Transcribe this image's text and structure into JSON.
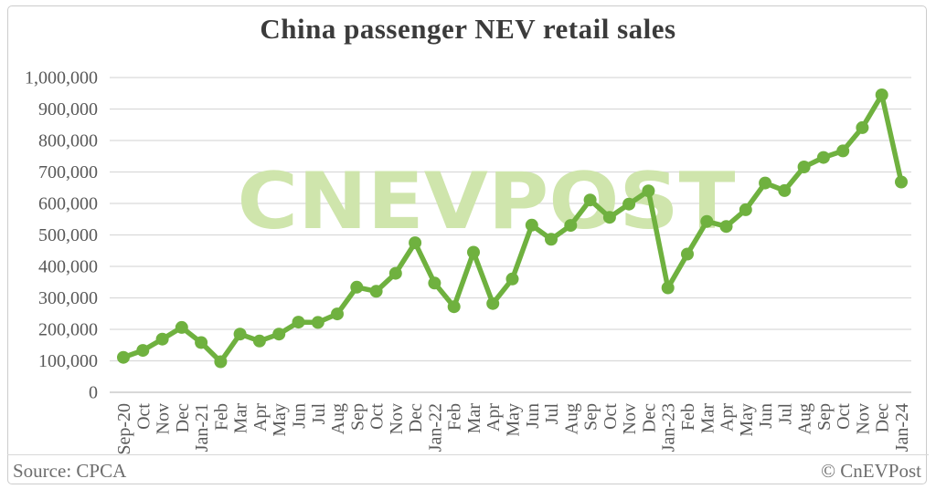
{
  "title": "China passenger NEV retail sales",
  "watermark": "CNEVPOST",
  "footer": {
    "source": "Source: CPCA",
    "credit": "© CnEVPost"
  },
  "colors": {
    "line": "#6fb13f",
    "marker": "#6fb13f",
    "watermark": "#cfe5ac",
    "grid": "#d9d9d9",
    "axis_line": "#c0c0c0",
    "axis_text": "#595959",
    "title_text": "#3b3b3b",
    "footer_text": "#6e6e6e",
    "card_border": "#cccccc"
  },
  "chart_data": {
    "type": "line",
    "title": "China passenger NEV retail sales",
    "xlabel": "",
    "ylabel": "",
    "ylim": [
      0,
      1000000
    ],
    "ytick_interval": 100000,
    "ytick_labels": [
      "0",
      "100,000",
      "200,000",
      "300,000",
      "400,000",
      "500,000",
      "600,000",
      "700,000",
      "800,000",
      "900,000",
      "1,000,000"
    ],
    "grid": true,
    "legend": false,
    "x": [
      "Sep-20",
      "Oct",
      "Nov",
      "Dec",
      "Jan-21",
      "Feb",
      "Mar",
      "Apr",
      "May",
      "Jun",
      "Jul",
      "Aug",
      "Sep",
      "Oct",
      "Nov",
      "Dec",
      "Jan-22",
      "Feb",
      "Mar",
      "Apr",
      "May",
      "Jun",
      "Jul",
      "Aug",
      "Sep",
      "Oct",
      "Nov",
      "Dec",
      "Jan-23",
      "Feb",
      "Mar",
      "Apr",
      "May",
      "Jun",
      "Jul",
      "Aug",
      "Sep",
      "Oct",
      "Nov",
      "Dec",
      "Jan-24"
    ],
    "series": [
      {
        "name": "China passenger NEV retail sales",
        "values": [
          111000,
          133000,
          169000,
          206000,
          158000,
          97000,
          185000,
          163000,
          185000,
          223000,
          222000,
          249000,
          334000,
          321000,
          378000,
          475000,
          347000,
          272000,
          445000,
          282000,
          360000,
          531000,
          486000,
          530000,
          611000,
          556000,
          598000,
          640000,
          332000,
          439000,
          543000,
          527000,
          580000,
          665000,
          641000,
          716000,
          746000,
          767000,
          841000,
          945000,
          668000
        ]
      }
    ]
  }
}
